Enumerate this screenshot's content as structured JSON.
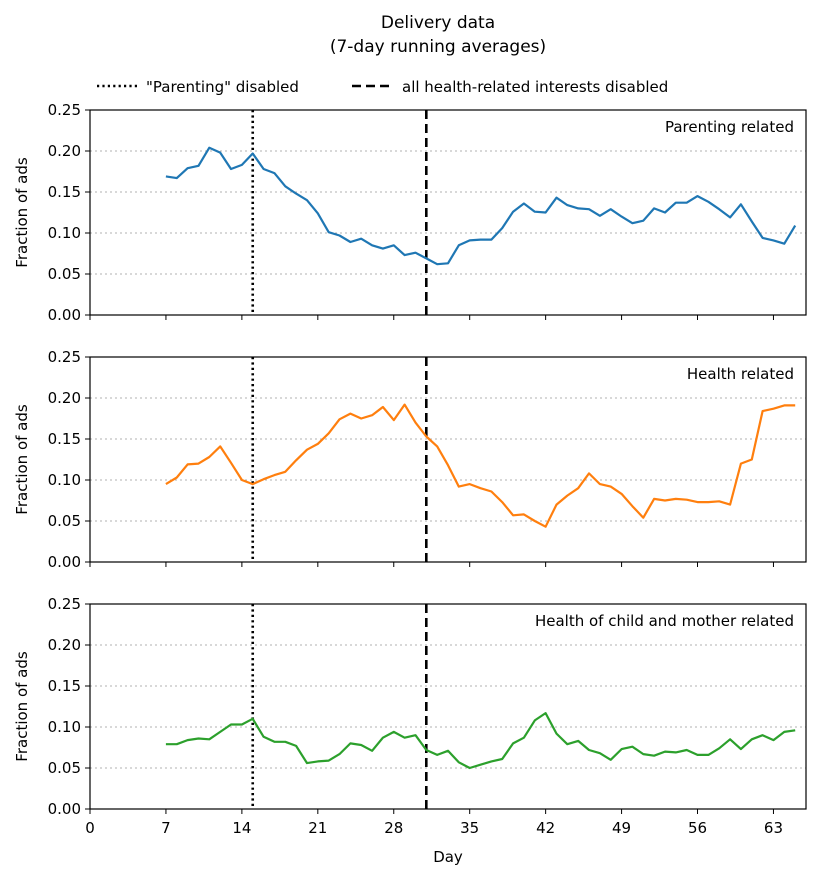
{
  "chart_data": {
    "type": "line",
    "title": "Delivery data",
    "subtitle": "(7-day running averages)",
    "xlabel": "Day",
    "ylabel": "Fraction of ads",
    "xlim": [
      0,
      66
    ],
    "ylim": [
      0,
      0.25
    ],
    "xticks": [
      "0",
      "7",
      "14",
      "21",
      "28",
      "35",
      "42",
      "49",
      "56",
      "63"
    ],
    "yticks": [
      "0.00",
      "0.05",
      "0.10",
      "0.15",
      "0.20",
      "0.25"
    ],
    "grid": "horizontal dotted",
    "legend": {
      "placement": "top",
      "items": [
        {
          "label": "\"Parenting\" disabled",
          "style": "dotted",
          "x": 15
        },
        {
          "label": "all health-related interests disabled",
          "style": "dashed",
          "x": 31
        }
      ]
    },
    "x": [
      7,
      8,
      9,
      10,
      11,
      12,
      13,
      14,
      15,
      16,
      17,
      18,
      19,
      20,
      21,
      22,
      23,
      24,
      25,
      26,
      27,
      28,
      29,
      30,
      31,
      32,
      33,
      34,
      35,
      36,
      37,
      38,
      39,
      40,
      41,
      42,
      43,
      44,
      45,
      46,
      47,
      48,
      49,
      50,
      51,
      52,
      53,
      54,
      55,
      56,
      57,
      58,
      59,
      60,
      61,
      62,
      63,
      64,
      65
    ],
    "panels": [
      {
        "label": "Parenting related",
        "color": "#1f77b4",
        "values": [
          0.169,
          0.167,
          0.179,
          0.182,
          0.204,
          0.198,
          0.178,
          0.183,
          0.197,
          0.178,
          0.173,
          0.157,
          0.148,
          0.14,
          0.124,
          0.101,
          0.097,
          0.089,
          0.093,
          0.085,
          0.081,
          0.085,
          0.073,
          0.076,
          0.069,
          0.062,
          0.063,
          0.085,
          0.091,
          0.092,
          0.092,
          0.106,
          0.126,
          0.136,
          0.126,
          0.125,
          0.143,
          0.134,
          0.13,
          0.129,
          0.121,
          0.129,
          0.12,
          0.112,
          0.115,
          0.13,
          0.125,
          0.137,
          0.137,
          0.145,
          0.138,
          0.129,
          0.119,
          0.135,
          0.114,
          0.094,
          0.091,
          0.087,
          0.109
        ]
      },
      {
        "label": "Health related",
        "color": "#ff7f0e",
        "values": [
          0.095,
          0.103,
          0.119,
          0.12,
          0.128,
          0.141,
          0.121,
          0.1,
          0.095,
          0.101,
          0.106,
          0.11,
          0.124,
          0.137,
          0.144,
          0.157,
          0.174,
          0.181,
          0.175,
          0.179,
          0.189,
          0.173,
          0.192,
          0.17,
          0.153,
          0.141,
          0.118,
          0.092,
          0.095,
          0.09,
          0.086,
          0.073,
          0.057,
          0.058,
          0.05,
          0.043,
          0.07,
          0.081,
          0.09,
          0.108,
          0.095,
          0.092,
          0.083,
          0.068,
          0.054,
          0.077,
          0.075,
          0.077,
          0.076,
          0.073,
          0.073,
          0.074,
          0.07,
          0.12,
          0.125,
          0.184,
          0.187,
          0.191,
          0.191
        ]
      },
      {
        "label": "Health of child and mother related",
        "color": "#2ca02c",
        "values": [
          0.079,
          0.079,
          0.084,
          0.086,
          0.085,
          0.094,
          0.103,
          0.103,
          0.11,
          0.088,
          0.082,
          0.082,
          0.077,
          0.056,
          0.058,
          0.059,
          0.067,
          0.08,
          0.078,
          0.071,
          0.087,
          0.094,
          0.087,
          0.09,
          0.072,
          0.066,
          0.071,
          0.057,
          0.05,
          0.054,
          0.058,
          0.061,
          0.08,
          0.087,
          0.108,
          0.117,
          0.092,
          0.079,
          0.083,
          0.072,
          0.068,
          0.06,
          0.073,
          0.076,
          0.067,
          0.065,
          0.07,
          0.069,
          0.072,
          0.066,
          0.066,
          0.074,
          0.085,
          0.073,
          0.085,
          0.09,
          0.084,
          0.094,
          0.096
        ]
      }
    ]
  }
}
